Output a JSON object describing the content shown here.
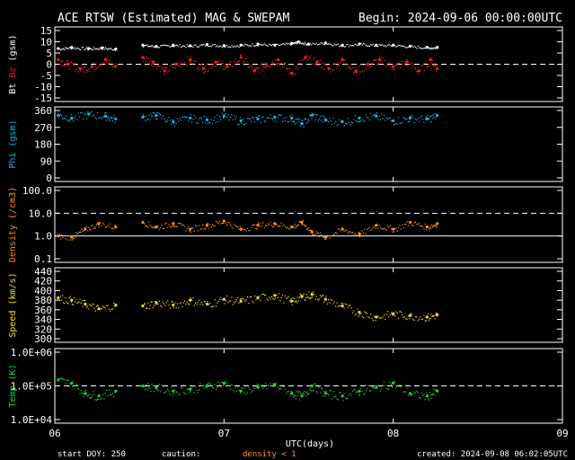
{
  "header": {
    "title": "ACE RTSW (Estimated) MAG & SWEPAM",
    "begin": "Begin: 2024-09-06 00:00:00UTC"
  },
  "footer": {
    "start_doy": "start DOY: 250",
    "caution": "caution:",
    "caution_note": "density < 1",
    "created": "created: 2024-09-08 06:02:05UTC",
    "xlabel": "UTC(days)"
  },
  "colors": {
    "bt": "#ffffff",
    "bz": "#e8202a",
    "phi": "#1fb4e8",
    "density": "#f7941d",
    "speed": "#f2e01e",
    "temp": "#2ecc40",
    "caution": "#f7941d",
    "frame": "#ffffff"
  },
  "chart_data": [
    {
      "id": "mag",
      "type": "scatter",
      "ylabel_parts": [
        "Bt",
        "Bz",
        "(gsm)"
      ],
      "ylim": [
        -15,
        15
      ],
      "scale": "linear",
      "ticks": [
        15,
        10,
        5,
        0,
        -5,
        -10,
        -15
      ],
      "tick_labels": [
        "15",
        "10",
        "5",
        "0",
        "-5",
        "-10",
        "-15"
      ],
      "dashed": [
        0
      ],
      "series": [
        {
          "name": "Bt",
          "x": [
            0.02,
            0.1,
            0.2,
            0.28,
            0.36,
            0.52,
            0.6,
            0.7,
            0.8,
            0.9,
            1.0,
            1.1,
            1.2,
            1.3,
            1.4,
            1.44,
            1.5,
            1.6,
            1.7,
            1.8,
            1.9,
            2.0,
            2.1,
            2.2,
            2.26
          ],
          "y": [
            7,
            7.5,
            7,
            7.3,
            6.8,
            8.5,
            8,
            8.5,
            8.2,
            8.8,
            8.3,
            8.5,
            9,
            8.5,
            9.3,
            10,
            9,
            9.5,
            8.5,
            9,
            8.5,
            8.5,
            8,
            7.5,
            7.5
          ]
        },
        {
          "name": "Bz",
          "x": [
            0.02,
            0.08,
            0.15,
            0.22,
            0.3,
            0.36,
            0.52,
            0.58,
            0.65,
            0.72,
            0.8,
            0.88,
            0.95,
            1.02,
            1.1,
            1.18,
            1.25,
            1.32,
            1.4,
            1.48,
            1.55,
            1.62,
            1.7,
            1.78,
            1.85,
            1.92,
            2.0,
            2.08,
            2.15,
            2.22,
            2.26
          ],
          "y": [
            2,
            0,
            -2,
            -1,
            2,
            -1,
            3,
            1,
            -3,
            0,
            2,
            -2,
            1,
            -1,
            3,
            -3,
            0,
            2,
            -4,
            3,
            1,
            -2,
            2,
            -3,
            0,
            2,
            -1,
            1,
            -3,
            2,
            -2
          ]
        }
      ]
    },
    {
      "id": "phi",
      "type": "scatter",
      "ylabel": "Phi (gsm)",
      "ylim": [
        0,
        360
      ],
      "scale": "linear",
      "ticks": [
        360,
        270,
        180,
        90,
        0
      ],
      "tick_labels": [
        "360",
        "270",
        "180",
        "90",
        "0"
      ],
      "dashed": [],
      "series": [
        {
          "name": "Phi",
          "x": [
            0.02,
            0.1,
            0.2,
            0.3,
            0.36,
            0.52,
            0.6,
            0.7,
            0.8,
            0.9,
            1.0,
            1.1,
            1.2,
            1.3,
            1.4,
            1.46,
            1.52,
            1.6,
            1.7,
            1.8,
            1.9,
            2.0,
            2.1,
            2.2,
            2.26
          ],
          "y": [
            335,
            320,
            340,
            330,
            315,
            325,
            335,
            300,
            320,
            310,
            330,
            305,
            315,
            325,
            320,
            290,
            335,
            310,
            300,
            320,
            330,
            305,
            320,
            315,
            335
          ]
        }
      ]
    },
    {
      "id": "density",
      "type": "scatter",
      "ylabel": "Density (/cm3)",
      "ylim": [
        0.1,
        100
      ],
      "scale": "log",
      "ticks": [
        100,
        10,
        1,
        0.1
      ],
      "tick_labels": [
        "100.0",
        "10.0",
        "1.0",
        "0.1"
      ],
      "dashed": [
        10
      ],
      "solid": [
        1
      ],
      "series": [
        {
          "name": "Density",
          "x": [
            0.02,
            0.1,
            0.18,
            0.26,
            0.36,
            0.52,
            0.6,
            0.7,
            0.8,
            0.9,
            1.0,
            1.1,
            1.2,
            1.3,
            1.4,
            1.46,
            1.52,
            1.6,
            1.7,
            1.8,
            1.9,
            2.0,
            2.1,
            2.2,
            2.26
          ],
          "y": [
            1.0,
            0.9,
            2.0,
            3.5,
            2.5,
            4.0,
            2.5,
            3.5,
            2.0,
            3.0,
            4.5,
            2.0,
            3.0,
            3.5,
            2.5,
            4.0,
            1.5,
            0.9,
            2.0,
            1.2,
            3.0,
            2.0,
            4.0,
            2.5,
            3.5
          ]
        }
      ]
    },
    {
      "id": "speed",
      "type": "scatter",
      "ylabel": "Speed (km/s)",
      "ylim": [
        300,
        440
      ],
      "scale": "linear",
      "ticks": [
        440,
        420,
        400,
        380,
        360,
        340,
        320,
        300
      ],
      "tick_labels": [
        "440",
        "420",
        "400",
        "380",
        "360",
        "340",
        "320",
        "300"
      ],
      "dashed": [],
      "series": [
        {
          "name": "Speed",
          "x": [
            0.02,
            0.1,
            0.18,
            0.26,
            0.36,
            0.52,
            0.6,
            0.7,
            0.8,
            0.9,
            1.0,
            1.1,
            1.2,
            1.3,
            1.4,
            1.46,
            1.52,
            1.6,
            1.7,
            1.8,
            1.9,
            2.0,
            2.1,
            2.2,
            2.26
          ],
          "y": [
            385,
            380,
            372,
            362,
            370,
            368,
            375,
            370,
            380,
            372,
            382,
            378,
            385,
            390,
            378,
            388,
            392,
            382,
            368,
            355,
            345,
            352,
            348,
            345,
            350
          ]
        }
      ]
    },
    {
      "id": "temp",
      "type": "scatter",
      "ylabel": "Temp (K)",
      "ylim": [
        10000,
        1000000
      ],
      "scale": "log",
      "ticks": [
        1000000,
        100000,
        10000
      ],
      "tick_labels": [
        "1.0E+06",
        "1.0E+05",
        "1.0E+04"
      ],
      "dashed": [
        100000
      ],
      "series": [
        {
          "name": "Temp",
          "x": [
            0.02,
            0.1,
            0.18,
            0.26,
            0.36,
            0.52,
            0.6,
            0.7,
            0.8,
            0.9,
            1.0,
            1.1,
            1.2,
            1.3,
            1.4,
            1.46,
            1.52,
            1.6,
            1.7,
            1.8,
            1.9,
            2.0,
            2.1,
            2.2,
            2.26
          ],
          "y": [
            150000,
            120000,
            60000,
            50000,
            70000,
            100000,
            90000,
            70000,
            80000,
            100000,
            120000,
            70000,
            90000,
            110000,
            60000,
            50000,
            100000,
            60000,
            50000,
            70000,
            90000,
            120000,
            60000,
            50000,
            70000
          ]
        }
      ]
    }
  ],
  "xaxis": {
    "xlim": [
      0,
      3
    ],
    "ticks": [
      0,
      1,
      2,
      3
    ],
    "tick_labels": [
      "06",
      "07",
      "08",
      "09"
    ]
  }
}
